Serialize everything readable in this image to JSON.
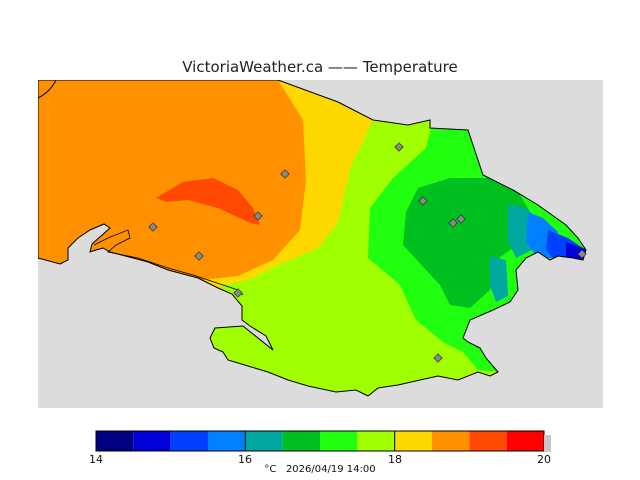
{
  "title": "VictoriaWeather.ca —— Temperature",
  "legend": {
    "min": 14,
    "max": 20,
    "ticks": [
      "14",
      "16",
      "18",
      "20"
    ],
    "colors": [
      "#000080",
      "#0000d8",
      "#0040ff",
      "#0080ff",
      "#00a8a0",
      "#00c020",
      "#20ff10",
      "#a0ff00",
      "#ffd800",
      "#ff9000",
      "#ff4800",
      "#ff0000"
    ],
    "caption_unit": "°C",
    "caption_datetime": "2026/04/19 14:00"
  },
  "map_colors": {
    "background": "#dcdcdc",
    "land_orange": "#ff9000",
    "land_redorange": "#ff4800",
    "land_yellow": "#ffd800",
    "land_lime": "#a0ff00",
    "land_green": "#20ff10",
    "land_darkgreen": "#00c020",
    "land_teal": "#00a8a0",
    "land_blue": "#0080ff",
    "land_darkblue": "#0000d8",
    "station_marker": "#888888"
  },
  "stations_count_visible": 11
}
